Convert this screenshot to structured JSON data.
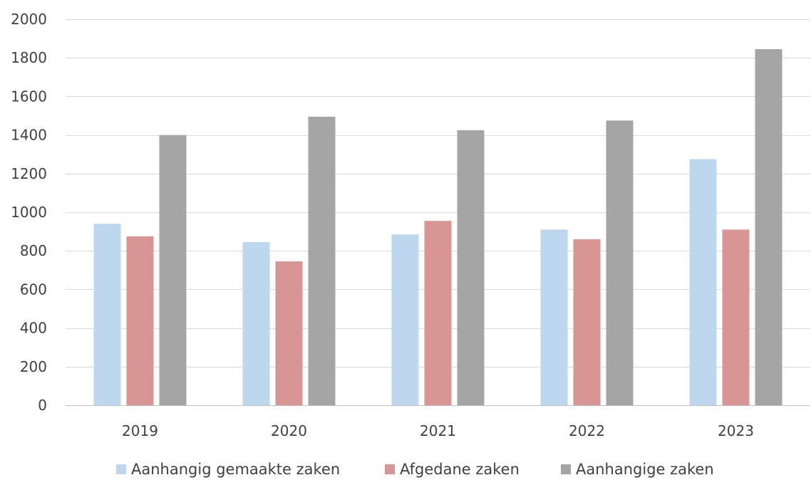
{
  "chart_data": {
    "type": "bar",
    "title": "",
    "xlabel": "",
    "ylabel": "",
    "categories": [
      "2019",
      "2020",
      "2021",
      "2022",
      "2023"
    ],
    "ylim": [
      0,
      2000
    ],
    "yticks": [
      0,
      200,
      400,
      600,
      800,
      1000,
      1200,
      1400,
      1600,
      1800,
      2000
    ],
    "grid": true,
    "legend_position": "bottom",
    "series": [
      {
        "name": "Aanhangig gemaakte zaken",
        "color": "#bdd7ee",
        "values": [
          940,
          845,
          885,
          910,
          1275
        ]
      },
      {
        "name": "Afgedane zaken",
        "color": "#d99594",
        "values": [
          875,
          745,
          955,
          860,
          910
        ]
      },
      {
        "name": "Aanhangige zaken",
        "color": "#a5a5a5",
        "values": [
          1400,
          1495,
          1425,
          1475,
          1845
        ]
      }
    ]
  }
}
